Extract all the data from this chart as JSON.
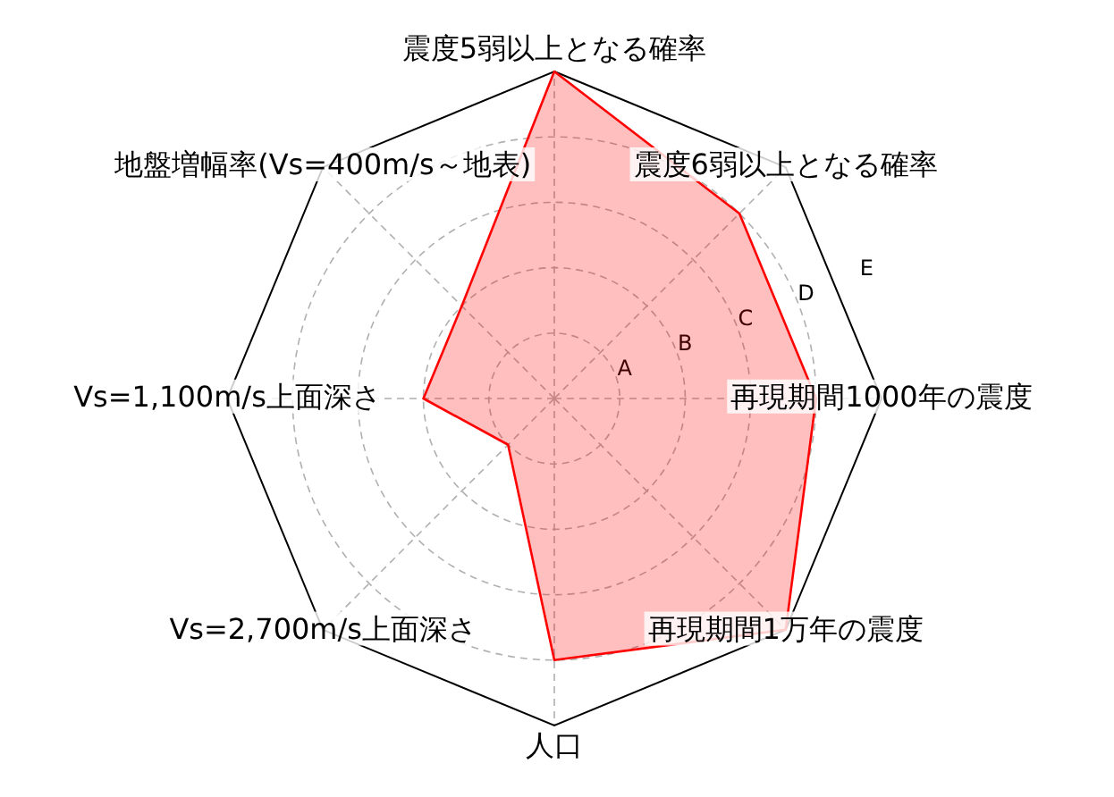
{
  "chart_data": {
    "type": "radar",
    "categories": [
      "震度5弱以上となる確率",
      "震度6弱以上となる確率",
      "再現期間1000年の震度",
      "再現期間1万年の震度",
      "人口",
      "Vs=2,700m/s上面深さ",
      "Vs=1,100m/s上面深さ",
      "地盤増幅率(Vs=400m/s～地表)"
    ],
    "series": [
      {
        "color": "#ff0000",
        "values": [
          5,
          4,
          4,
          5,
          4,
          1,
          2,
          2
        ]
      }
    ],
    "ylim": [
      0,
      5
    ],
    "yticks": [
      {
        "value": 1,
        "label": "A"
      },
      {
        "value": 2,
        "label": "B"
      },
      {
        "value": 3,
        "label": "C"
      },
      {
        "value": 4,
        "label": "D"
      },
      {
        "value": 5,
        "label": "E"
      }
    ],
    "grid": true
  }
}
